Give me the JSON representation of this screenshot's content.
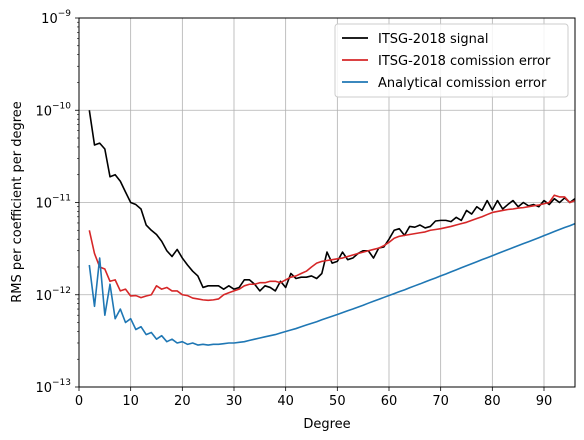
{
  "chart_data": {
    "type": "line",
    "title": "",
    "xlabel": "Degree",
    "ylabel": "RMS per coefficient per degree",
    "xlim": [
      0,
      96
    ],
    "ylim": [
      1e-13,
      1e-09
    ],
    "yscale": "log",
    "grid": true,
    "legend_position": "top-right",
    "x_ticks": [
      "0",
      "10",
      "20",
      "30",
      "40",
      "50",
      "60",
      "70",
      "80",
      "90"
    ],
    "x_tick_values": [
      0,
      10,
      20,
      30,
      40,
      50,
      60,
      70,
      80,
      90
    ],
    "y_ticks": [
      {
        "base": "10",
        "exp": "−13",
        "value": 1e-13
      },
      {
        "base": "10",
        "exp": "−12",
        "value": 1e-12
      },
      {
        "base": "10",
        "exp": "−11",
        "value": 1e-11
      },
      {
        "base": "10",
        "exp": "−10",
        "value": 1e-10
      },
      {
        "base": "10",
        "exp": "−9",
        "value": 1e-09
      }
    ],
    "series": [
      {
        "name": "ITSG-2018 signal",
        "color": "#000000",
        "x": [
          2,
          3,
          4,
          5,
          6,
          7,
          8,
          9,
          10,
          11,
          12,
          13,
          14,
          15,
          16,
          17,
          18,
          19,
          20,
          21,
          22,
          23,
          24,
          25,
          26,
          27,
          28,
          29,
          30,
          31,
          32,
          33,
          34,
          35,
          36,
          37,
          38,
          39,
          40,
          41,
          42,
          43,
          44,
          45,
          46,
          47,
          48,
          49,
          50,
          51,
          52,
          53,
          54,
          55,
          56,
          57,
          58,
          59,
          60,
          61,
          62,
          63,
          64,
          65,
          66,
          67,
          68,
          69,
          70,
          71,
          72,
          73,
          74,
          75,
          76,
          77,
          78,
          79,
          80,
          81,
          82,
          83,
          84,
          85,
          86,
          87,
          88,
          89,
          90,
          91,
          92,
          93,
          94,
          95,
          96
        ],
        "y": [
          1e-10,
          4.2e-11,
          4.4e-11,
          3.8e-11,
          1.9e-11,
          2e-11,
          1.7e-11,
          1.3e-11,
          1e-11,
          9.5e-12,
          8.5e-12,
          5.7e-12,
          5e-12,
          4.5e-12,
          3.8e-12,
          3e-12,
          2.6e-12,
          3.1e-12,
          2.5e-12,
          2.1e-12,
          1.8e-12,
          1.6e-12,
          1.2e-12,
          1.25e-12,
          1.25e-12,
          1.25e-12,
          1.15e-12,
          1.25e-12,
          1.15e-12,
          1.2e-12,
          1.45e-12,
          1.45e-12,
          1.3e-12,
          1.1e-12,
          1.25e-12,
          1.2e-12,
          1.1e-12,
          1.4e-12,
          1.2e-12,
          1.7e-12,
          1.5e-12,
          1.55e-12,
          1.55e-12,
          1.6e-12,
          1.5e-12,
          1.7e-12,
          2.9e-12,
          2.2e-12,
          2.3e-12,
          2.9e-12,
          2.4e-12,
          2.5e-12,
          2.8e-12,
          3e-12,
          3e-12,
          2.5e-12,
          3.2e-12,
          3.3e-12,
          4e-12,
          5e-12,
          5.2e-12,
          4.4e-12,
          5.5e-12,
          5.4e-12,
          5.7e-12,
          5.3e-12,
          5.5e-12,
          6.3e-12,
          6.4e-12,
          6.4e-12,
          6.2e-12,
          6.9e-12,
          6.4e-12,
          8.2e-12,
          7.5e-12,
          9e-12,
          8.2e-12,
          1.05e-11,
          8.3e-12,
          1.05e-11,
          8.5e-12,
          9.5e-12,
          1.05e-11,
          9e-12,
          1e-11,
          9.2e-12,
          9.5e-12,
          9e-12,
          1.05e-11,
          9.5e-12,
          1.1e-11,
          1e-11,
          1.12e-11,
          1e-11,
          1.1e-11
        ]
      },
      {
        "name": "ITSG-2018 comission error",
        "color": "#d62728",
        "x": [
          2,
          3,
          4,
          5,
          6,
          7,
          8,
          9,
          10,
          11,
          12,
          13,
          14,
          15,
          16,
          17,
          18,
          19,
          20,
          21,
          22,
          23,
          24,
          25,
          26,
          27,
          28,
          29,
          30,
          31,
          32,
          33,
          34,
          35,
          36,
          37,
          38,
          39,
          40,
          41,
          42,
          43,
          44,
          45,
          46,
          47,
          48,
          49,
          50,
          51,
          52,
          53,
          54,
          55,
          56,
          57,
          58,
          59,
          60,
          61,
          62,
          63,
          64,
          65,
          66,
          67,
          68,
          69,
          70,
          71,
          72,
          73,
          74,
          75,
          76,
          77,
          78,
          79,
          80,
          81,
          82,
          83,
          84,
          85,
          86,
          87,
          88,
          89,
          90,
          91,
          92,
          93,
          94,
          95,
          96
        ],
        "y": [
          5e-12,
          2.8e-12,
          2e-12,
          1.9e-12,
          1.4e-12,
          1.45e-12,
          1.1e-12,
          1.15e-12,
          9.7e-13,
          9.8e-13,
          9.3e-13,
          9.7e-13,
          1e-12,
          1.25e-12,
          1.15e-12,
          1.2e-12,
          1.1e-12,
          1.1e-12,
          1e-12,
          9.8e-13,
          9.2e-13,
          9e-13,
          8.8e-13,
          8.7e-13,
          8.8e-13,
          9e-13,
          1e-12,
          1.05e-12,
          1.1e-12,
          1.15e-12,
          1.25e-12,
          1.3e-12,
          1.3e-12,
          1.35e-12,
          1.35e-12,
          1.4e-12,
          1.4e-12,
          1.35e-12,
          1.45e-12,
          1.55e-12,
          1.6e-12,
          1.7e-12,
          1.8e-12,
          2e-12,
          2.2e-12,
          2.3e-12,
          2.35e-12,
          2.4e-12,
          2.45e-12,
          2.5e-12,
          2.6e-12,
          2.7e-12,
          2.8e-12,
          2.9e-12,
          3e-12,
          3.1e-12,
          3.2e-12,
          3.4e-12,
          3.7e-12,
          4.1e-12,
          4.3e-12,
          4.4e-12,
          4.5e-12,
          4.6e-12,
          4.7e-12,
          4.8e-12,
          5e-12,
          5.1e-12,
          5.2e-12,
          5.35e-12,
          5.5e-12,
          5.7e-12,
          5.9e-12,
          6.1e-12,
          6.4e-12,
          6.7e-12,
          7e-12,
          7.4e-12,
          7.8e-12,
          8e-12,
          8.2e-12,
          8.4e-12,
          8.5e-12,
          8.7e-12,
          8.8e-12,
          9e-12,
          9.2e-12,
          9.4e-12,
          9.7e-12,
          1e-11,
          1.2e-11,
          1.15e-11,
          1.15e-11,
          1e-11,
          1.05e-11
        ]
      },
      {
        "name": "Analytical comission error",
        "color": "#1f77b4",
        "x": [
          2,
          3,
          4,
          5,
          6,
          7,
          8,
          9,
          10,
          11,
          12,
          13,
          14,
          15,
          16,
          17,
          18,
          19,
          20,
          21,
          22,
          23,
          24,
          25,
          26,
          27,
          28,
          29,
          30,
          31,
          32,
          33,
          34,
          35,
          36,
          37,
          38,
          39,
          40,
          41,
          42,
          43,
          44,
          45,
          46,
          47,
          48,
          49,
          50,
          51,
          52,
          53,
          54,
          55,
          56,
          57,
          58,
          59,
          60,
          61,
          62,
          63,
          64,
          65,
          66,
          67,
          68,
          69,
          70,
          71,
          72,
          73,
          74,
          75,
          76,
          77,
          78,
          79,
          80,
          81,
          82,
          83,
          84,
          85,
          86,
          87,
          88,
          89,
          90,
          91,
          92,
          93,
          94,
          95,
          96
        ],
        "y": [
          2.1e-12,
          7.5e-13,
          2.5e-12,
          6e-13,
          1.3e-12,
          5.5e-13,
          7e-13,
          5e-13,
          5.5e-13,
          4.2e-13,
          4.5e-13,
          3.7e-13,
          3.9e-13,
          3.3e-13,
          3.6e-13,
          3.1e-13,
          3.3e-13,
          3e-13,
          3.1e-13,
          2.9e-13,
          3e-13,
          2.85e-13,
          2.9e-13,
          2.85e-13,
          2.9e-13,
          2.9e-13,
          2.95e-13,
          3e-13,
          3e-13,
          3.05e-13,
          3.1e-13,
          3.2e-13,
          3.3e-13,
          3.4e-13,
          3.5e-13,
          3.6e-13,
          3.7e-13,
          3.85e-13,
          4e-13,
          4.15e-13,
          4.3e-13,
          4.5e-13,
          4.7e-13,
          4.9e-13,
          5.1e-13,
          5.35e-13,
          5.6e-13,
          5.85e-13,
          6.1e-13,
          6.4e-13,
          6.7e-13,
          7e-13,
          7.35e-13,
          7.7e-13,
          8.1e-13,
          8.5e-13,
          8.9e-13,
          9.35e-13,
          9.8e-13,
          1.03e-12,
          1.08e-12,
          1.13e-12,
          1.19e-12,
          1.25e-12,
          1.31e-12,
          1.38e-12,
          1.45e-12,
          1.52e-12,
          1.6e-12,
          1.68e-12,
          1.77e-12,
          1.86e-12,
          1.96e-12,
          2.06e-12,
          2.17e-12,
          2.28e-12,
          2.4e-12,
          2.52e-12,
          2.65e-12,
          2.79e-12,
          2.93e-12,
          3.08e-12,
          3.24e-12,
          3.41e-12,
          3.58e-12,
          3.76e-12,
          3.95e-12,
          4.15e-12,
          4.37e-12,
          4.6e-12,
          4.85e-12,
          5.1e-12,
          5.35e-12,
          5.6e-12,
          5.9e-12
        ]
      }
    ]
  }
}
